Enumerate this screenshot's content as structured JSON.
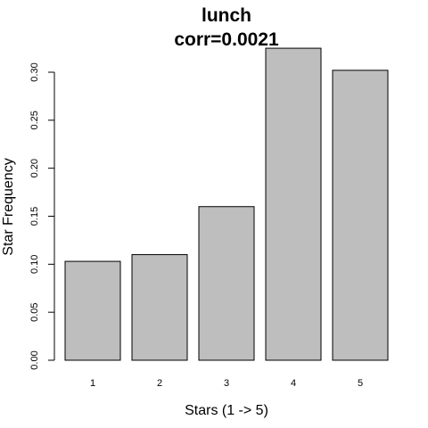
{
  "chart_data": {
    "type": "bar",
    "title": "lunch",
    "subtitle": "corr=0.0021",
    "xlabel": "Stars (1 -> 5)",
    "ylabel": "Star Frequency",
    "categories": [
      "1",
      "2",
      "3",
      "4",
      "5"
    ],
    "values": [
      0.103,
      0.11,
      0.16,
      0.325,
      0.302
    ],
    "yticks": [
      "0.00",
      "0.05",
      "0.10",
      "0.15",
      "0.20",
      "0.25",
      "0.30"
    ],
    "ylim": [
      0,
      0.3
    ],
    "grid": false,
    "bar_color": "#bebebe",
    "bar_border_color": "#000000"
  }
}
